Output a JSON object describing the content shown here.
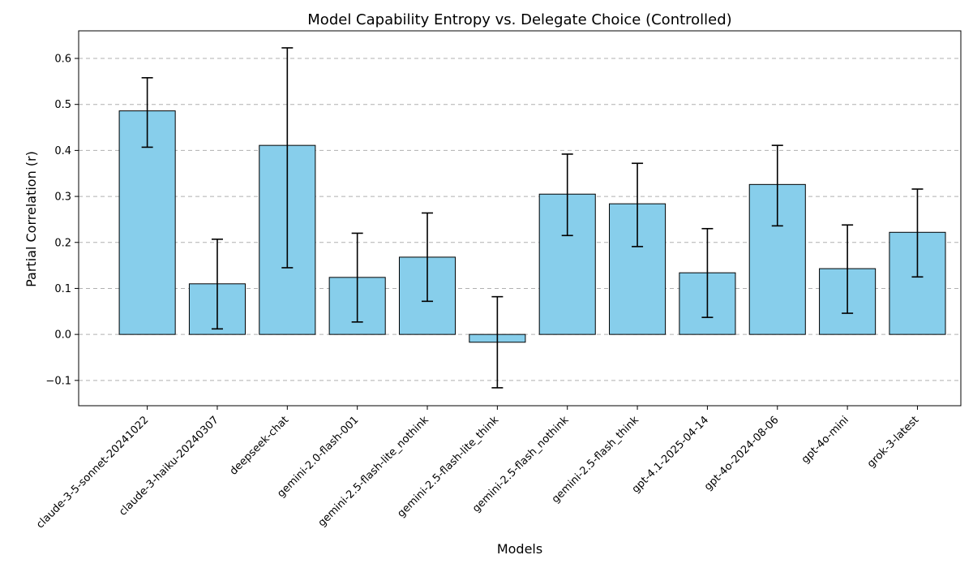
{
  "chart_data": {
    "type": "bar",
    "title": "Model Capability Entropy vs. Delegate Choice (Controlled)",
    "xlabel": "Models",
    "ylabel": "Partial Correlation (r)",
    "ylim": [
      -0.155,
      0.66
    ],
    "yticks": [
      -0.1,
      0.0,
      0.1,
      0.2,
      0.3,
      0.4,
      0.5,
      0.6
    ],
    "ytick_labels": [
      "−0.1",
      "0.0",
      "0.1",
      "0.2",
      "0.3",
      "0.4",
      "0.5",
      "0.6"
    ],
    "grid": true,
    "bar_color": "#87ceeb",
    "categories": [
      "claude-3-5-sonnet-20241022",
      "claude-3-haiku-20240307",
      "deepseek-chat",
      "gemini-2.0-flash-001",
      "gemini-2.5-flash-lite_nothink",
      "gemini-2.5-flash-lite_think",
      "gemini-2.5-flash_nothink",
      "gemini-2.5-flash_think",
      "gpt-4.1-2025-04-14",
      "gpt-4o-2024-08-06",
      "gpt-4o-mini",
      "grok-3-latest"
    ],
    "values": [
      0.486,
      0.11,
      0.411,
      0.124,
      0.168,
      -0.017,
      0.305,
      0.284,
      0.134,
      0.326,
      0.143,
      0.222
    ],
    "err_low": [
      0.407,
      0.012,
      0.145,
      0.027,
      0.072,
      -0.116,
      0.215,
      0.191,
      0.037,
      0.236,
      0.046,
      0.125
    ],
    "err_high": [
      0.558,
      0.207,
      0.623,
      0.22,
      0.264,
      0.082,
      0.392,
      0.372,
      0.23,
      0.411,
      0.238,
      0.316
    ]
  }
}
